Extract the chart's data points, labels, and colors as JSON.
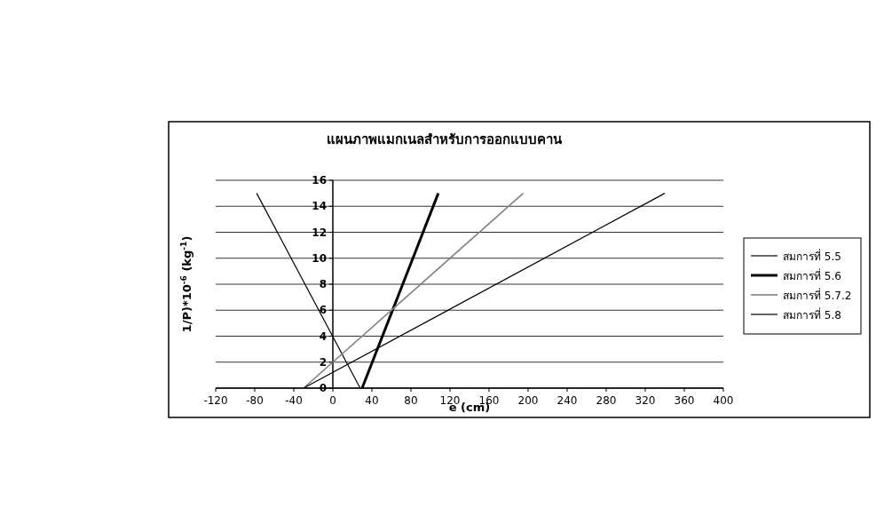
{
  "chart_data": {
    "type": "line",
    "title": "แผนภาพแมกเนลสำหรับการออกแบบคาน",
    "xlabel": "e (cm)",
    "ylabel": "1/P)*10$^{-6}$ (kg$^{-1}$)",
    "xlim": [
      -120,
      400
    ],
    "xticks": [
      -120,
      -80,
      -40,
      0,
      40,
      80,
      120,
      160,
      200,
      240,
      280,
      320,
      360,
      400
    ],
    "ylim": [
      0,
      16
    ],
    "yticks": [
      0,
      2,
      4,
      6,
      8,
      10,
      12,
      14,
      16
    ],
    "grid": "y",
    "legend": "right",
    "marker": "none",
    "series": [
      {
        "name": "สมการที่ 5.5",
        "color": "#000000",
        "x": [
          -78,
          28
        ],
        "values": [
          15,
          0
        ]
      },
      {
        "name": "สมการที่ 5.6",
        "color": "#000000",
        "x": [
          30,
          108
        ],
        "values": [
          0,
          15
        ]
      },
      {
        "name": "สมการที่ 5.7.2",
        "color": "#808080",
        "x": [
          -30,
          195
        ],
        "values": [
          0,
          15
        ]
      },
      {
        "name": "สมการที่ 5.8",
        "color": "#000000",
        "x": [
          -30,
          340
        ],
        "values": [
          0,
          15
        ]
      }
    ]
  }
}
